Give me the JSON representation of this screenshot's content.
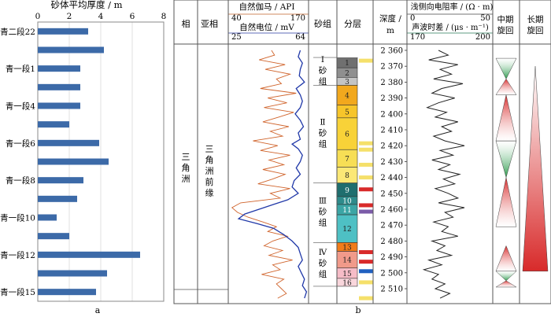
{
  "chart_data": [
    {
      "type": "bar",
      "orientation": "horizontal",
      "panel_label": "a",
      "title": "砂体平均厚度 / m",
      "xlim": [
        0,
        8
      ],
      "xticks": [
        0,
        2,
        4,
        6,
        8
      ],
      "categories": [
        "青二段22",
        "",
        "青一段1",
        "",
        "青一段4",
        "",
        "青一段6",
        "",
        "青一段8",
        "",
        "青一段10",
        "",
        "青一段12",
        "",
        "青一段15"
      ],
      "values": [
        3.2,
        4.2,
        2.7,
        2.7,
        2.7,
        2.0,
        3.9,
        4.5,
        2.9,
        2.5,
        1.2,
        2.0,
        6.5,
        4.4,
        3.7
      ],
      "bar_color": "#3c6aa8"
    },
    {
      "type": "well_log_panel",
      "panel_label": "b",
      "headers": {
        "facies": "相",
        "subfacies": "亚相",
        "gr_title": "自然伽马 / API",
        "gr_min": "40",
        "gr_max": "170",
        "sp_title": "自然电位 / mV",
        "sp_min": "25",
        "sp_max": "64",
        "sand_group": "砂组",
        "layer": "分层",
        "depth_line1": "深度 /",
        "depth_line2": "m",
        "res_title": "浅侧向电阻率 / (Ω · m)",
        "res_min": "0",
        "res_max": "50",
        "ac_title": "声波时差 / (μs · m⁻¹)",
        "ac_min": "170",
        "ac_max": "200",
        "mid_cycle": "中期旋回",
        "long_cycle": "长期旋回"
      },
      "facies": "三角洲",
      "subfacies": "三角洲前缘",
      "depth_ticks": [
        2360,
        2370,
        2380,
        2390,
        2400,
        2410,
        2420,
        2430,
        2440,
        2450,
        2460,
        2470,
        2480,
        2490,
        2500,
        2510
      ],
      "sand_groups": [
        {
          "numeral": "Ⅰ",
          "name": "砂组",
          "top": 2364.5,
          "bottom": 2382.0
        },
        {
          "numeral": "Ⅱ",
          "name": "砂组",
          "top": 2382.0,
          "bottom": 2443.5
        },
        {
          "numeral": "Ⅲ",
          "name": "砂组",
          "top": 2443.5,
          "bottom": 2481.0
        },
        {
          "numeral": "Ⅳ",
          "name": "砂组",
          "top": 2481.0,
          "bottom": 2508.5
        }
      ],
      "layers": [
        {
          "label": "1",
          "top": 2364.5,
          "bottom": 2371.0,
          "color": "#707070"
        },
        {
          "label": "2",
          "top": 2371.0,
          "bottom": 2377.0,
          "color": "#8f8f8f"
        },
        {
          "label": "3",
          "top": 2377.0,
          "bottom": 2382.0,
          "color": "#c4c4c4"
        },
        {
          "label": "4",
          "top": 2382.0,
          "bottom": 2394.5,
          "color": "#f2a81d"
        },
        {
          "label": "5",
          "top": 2394.5,
          "bottom": 2402.5,
          "color": "#f7c52a"
        },
        {
          "label": "6",
          "top": 2402.5,
          "bottom": 2422.5,
          "color": "#f8d238"
        },
        {
          "label": "7",
          "top": 2422.5,
          "bottom": 2433.5,
          "color": "#f7de55"
        },
        {
          "label": "8",
          "top": 2433.5,
          "bottom": 2443.5,
          "color": "#fbe876"
        },
        {
          "label": "9",
          "top": 2443.5,
          "bottom": 2452.0,
          "color": "#1f6e6e"
        },
        {
          "label": "10",
          "top": 2452.0,
          "bottom": 2457.0,
          "color": "#2e8b8b"
        },
        {
          "label": "11",
          "top": 2457.0,
          "bottom": 2463.5,
          "color": "#3ba5a5"
        },
        {
          "label": "12",
          "top": 2463.5,
          "bottom": 2481.0,
          "color": "#4ec0c4"
        },
        {
          "label": "13",
          "top": 2481.0,
          "bottom": 2486.5,
          "color": "#f07c1a"
        },
        {
          "label": "14",
          "top": 2486.5,
          "bottom": 2497.0,
          "color": "#f19a8a"
        },
        {
          "label": "15",
          "top": 2497.0,
          "bottom": 2503.5,
          "color": "#f6bcc7"
        },
        {
          "label": "16",
          "top": 2503.5,
          "bottom": 2508.5,
          "color": "#f9d6dc"
        }
      ],
      "lith_marks": [
        {
          "depth": 2366.5,
          "color": "#f5e06a"
        },
        {
          "depth": 2418.5,
          "color": "#f5e06a"
        },
        {
          "depth": 2422.5,
          "color": "#f5e06a"
        },
        {
          "depth": 2432.0,
          "color": "#f5e06a"
        },
        {
          "depth": 2440.0,
          "color": "#f5e06a"
        },
        {
          "depth": 2447.5,
          "color": "#d92a2a"
        },
        {
          "depth": 2457.5,
          "color": "#d92a2a"
        },
        {
          "depth": 2461.5,
          "color": "#7b5ba8"
        },
        {
          "depth": 2487.0,
          "color": "#d92a2a"
        },
        {
          "depth": 2493.0,
          "color": "#d92a2a"
        },
        {
          "depth": 2499.0,
          "color": "#2060c0"
        },
        {
          "depth": 2506.0,
          "color": "#f5e06a"
        },
        {
          "depth": 2516.0,
          "color": "#f5e06a"
        }
      ],
      "mid_cycles": [
        {
          "top": 2365,
          "bottom": 2388,
          "apex": 2378,
          "down": "#2a9a4a",
          "up": "#d82a2a"
        },
        {
          "top": 2388,
          "bottom": 2417,
          "apex": 2417,
          "down": "",
          "up": "#d82a2a"
        },
        {
          "top": 2417,
          "bottom": 2471,
          "apex": 2440,
          "down": "#2a9a4a",
          "up": "#d82a2a"
        },
        {
          "top": 2471,
          "bottom": 2499,
          "apex": 2483,
          "down": "",
          "up": "#d82a2a"
        },
        {
          "top": 2499,
          "bottom": 2509,
          "apex": 2505,
          "down": "#2a9a4a",
          "up": "#d82a2a"
        }
      ],
      "long_cycle": {
        "top": 2370,
        "bottom": 2499,
        "apex_top": 2370,
        "color": "#d82a2a"
      },
      "gr_curve": [
        [
          2360,
          110
        ],
        [
          2363,
          115
        ],
        [
          2366,
          90
        ],
        [
          2369,
          132
        ],
        [
          2372,
          100
        ],
        [
          2375,
          140
        ],
        [
          2378,
          118
        ],
        [
          2381,
          126
        ],
        [
          2384,
          92
        ],
        [
          2387,
          150
        ],
        [
          2390,
          104
        ],
        [
          2393,
          135
        ],
        [
          2396,
          98
        ],
        [
          2399,
          146
        ],
        [
          2402,
          122
        ],
        [
          2405,
          96
        ],
        [
          2408,
          138
        ],
        [
          2411,
          108
        ],
        [
          2414,
          128
        ],
        [
          2417,
          80
        ],
        [
          2420,
          120
        ],
        [
          2423,
          92
        ],
        [
          2426,
          140
        ],
        [
          2429,
          106
        ],
        [
          2432,
          130
        ],
        [
          2435,
          96
        ],
        [
          2438,
          132
        ],
        [
          2441,
          112
        ],
        [
          2444,
          88
        ],
        [
          2447,
          140
        ],
        [
          2450,
          108
        ],
        [
          2453,
          124
        ],
        [
          2456,
          60
        ],
        [
          2459,
          46
        ],
        [
          2462,
          55
        ],
        [
          2465,
          72
        ],
        [
          2468,
          96
        ],
        [
          2471,
          118
        ],
        [
          2474,
          104
        ],
        [
          2477,
          136
        ],
        [
          2480,
          112
        ],
        [
          2483,
          98
        ],
        [
          2486,
          128
        ],
        [
          2489,
          106
        ],
        [
          2492,
          144
        ],
        [
          2495,
          112
        ],
        [
          2498,
          124
        ],
        [
          2501,
          94
        ],
        [
          2504,
          130
        ],
        [
          2507,
          118
        ],
        [
          2510,
          126
        ],
        [
          2513,
          134
        ],
        [
          2516,
          120
        ]
      ],
      "sp_curve": [
        [
          2360,
          60
        ],
        [
          2364,
          59
        ],
        [
          2368,
          61
        ],
        [
          2372,
          60
        ],
        [
          2376,
          59.5
        ],
        [
          2380,
          62
        ],
        [
          2384,
          58
        ],
        [
          2388,
          60
        ],
        [
          2392,
          61
        ],
        [
          2396,
          60
        ],
        [
          2400,
          57.5
        ],
        [
          2404,
          60
        ],
        [
          2408,
          61.5
        ],
        [
          2412,
          59
        ],
        [
          2416,
          60
        ],
        [
          2419,
          56
        ],
        [
          2422,
          59
        ],
        [
          2426,
          61
        ],
        [
          2430,
          60
        ],
        [
          2434,
          58
        ],
        [
          2438,
          60
        ],
        [
          2442,
          57
        ],
        [
          2446,
          56
        ],
        [
          2450,
          59
        ],
        [
          2454,
          54
        ],
        [
          2457,
          47
        ],
        [
          2460,
          40
        ],
        [
          2463,
          33
        ],
        [
          2466,
          30
        ],
        [
          2469,
          39
        ],
        [
          2472,
          47
        ],
        [
          2476,
          52
        ],
        [
          2480,
          56
        ],
        [
          2484,
          59
        ],
        [
          2488,
          60
        ],
        [
          2492,
          61
        ],
        [
          2496,
          59
        ],
        [
          2500,
          60.5
        ],
        [
          2504,
          62
        ],
        [
          2508,
          61
        ],
        [
          2512,
          63
        ],
        [
          2516,
          62
        ]
      ],
      "res_curve": [
        [
          2360,
          18
        ],
        [
          2363,
          24
        ],
        [
          2366,
          12
        ],
        [
          2369,
          30
        ],
        [
          2372,
          19
        ],
        [
          2375,
          26
        ],
        [
          2378,
          15
        ],
        [
          2381,
          33
        ],
        [
          2384,
          20
        ],
        [
          2387,
          14
        ],
        [
          2390,
          28
        ],
        [
          2393,
          18
        ],
        [
          2396,
          11
        ],
        [
          2399,
          23
        ],
        [
          2402,
          16
        ],
        [
          2405,
          30
        ],
        [
          2408,
          20
        ],
        [
          2411,
          26
        ],
        [
          2414,
          15
        ],
        [
          2417,
          22
        ],
        [
          2420,
          34
        ],
        [
          2423,
          19
        ],
        [
          2426,
          27
        ],
        [
          2429,
          14
        ],
        [
          2432,
          25
        ],
        [
          2435,
          18
        ],
        [
          2438,
          31
        ],
        [
          2441,
          21
        ],
        [
          2444,
          28
        ],
        [
          2447,
          16
        ],
        [
          2450,
          24
        ],
        [
          2453,
          30
        ],
        [
          2456,
          18
        ],
        [
          2459,
          34
        ],
        [
          2462,
          22
        ],
        [
          2465,
          27
        ],
        [
          2468,
          15
        ],
        [
          2471,
          24
        ],
        [
          2474,
          20
        ],
        [
          2477,
          30
        ],
        [
          2480,
          14
        ],
        [
          2483,
          22
        ],
        [
          2486,
          17
        ],
        [
          2489,
          26
        ],
        [
          2492,
          12
        ],
        [
          2495,
          20
        ],
        [
          2498,
          9
        ],
        [
          2501,
          18
        ],
        [
          2504,
          14
        ],
        [
          2507,
          22
        ],
        [
          2510,
          16
        ],
        [
          2513,
          25
        ],
        [
          2516,
          19
        ]
      ]
    }
  ]
}
